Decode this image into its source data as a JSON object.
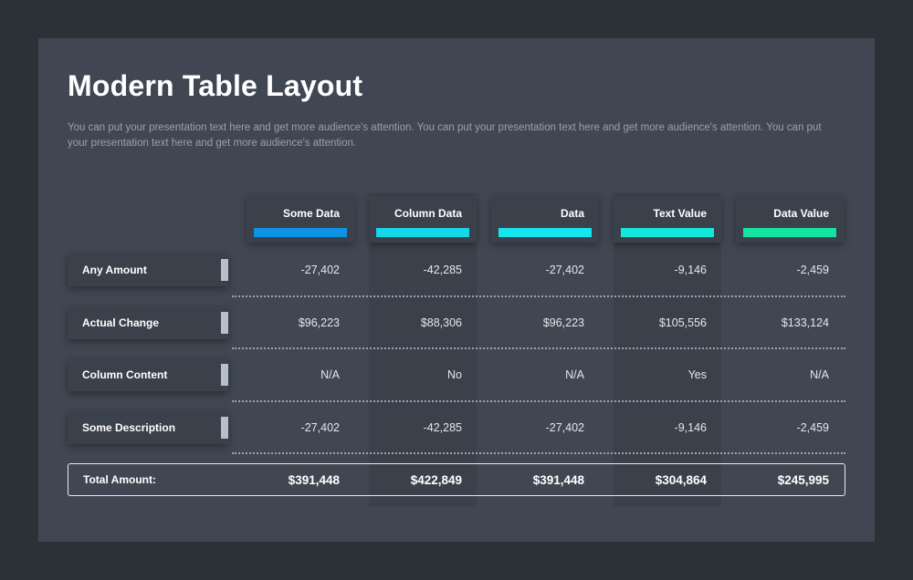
{
  "title": "Modern Table Layout",
  "subtitle": "You can put your presentation text here and get more audience's attention. You can put your presentation text here and get more audience's attention. You can put your presentation text here and get more audience's attention.",
  "columns": [
    {
      "label": "Some Data",
      "color": "#0e93e4"
    },
    {
      "label": "Column Data",
      "color": "#14d8ea"
    },
    {
      "label": "Data",
      "color": "#14e5ef"
    },
    {
      "label": "Text Value",
      "color": "#14e7dc"
    },
    {
      "label": "Data Value",
      "color": "#14e3a2"
    }
  ],
  "rows": [
    {
      "label": "Any Amount",
      "values": [
        "-27,402",
        "-42,285",
        "-27,402",
        "-9,146",
        "-2,459"
      ]
    },
    {
      "label": "Actual Change",
      "values": [
        "$96,223",
        "$88,306",
        "$96,223",
        "$105,556",
        "$133,124"
      ]
    },
    {
      "label": "Column Content",
      "values": [
        "N/A",
        "No",
        "N/A",
        "Yes",
        "N/A"
      ]
    },
    {
      "label": "Some Description",
      "values": [
        "-27,402",
        "-42,285",
        "-27,402",
        "-9,146",
        "-2,459"
      ]
    }
  ],
  "total": {
    "label": "Total Amount:",
    "values": [
      "$391,448",
      "$422,849",
      "$391,448",
      "$304,864",
      "$245,995"
    ]
  }
}
